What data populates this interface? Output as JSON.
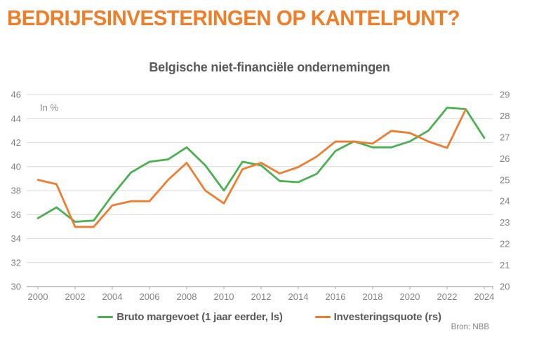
{
  "page": {
    "title": "BEDRIJFSINVESTERINGEN OP KANTELPUNT?",
    "source": "Bron: NBB"
  },
  "chart_data": {
    "type": "line",
    "title": "Belgische niet-financiële ondernemingen",
    "unit_note": "In %",
    "grid": true,
    "legend_position": "bottom",
    "x": [
      2000,
      2001,
      2002,
      2003,
      2004,
      2005,
      2006,
      2007,
      2008,
      2009,
      2010,
      2011,
      2012,
      2013,
      2014,
      2015,
      2016,
      2017,
      2018,
      2019,
      2020,
      2021,
      2022,
      2023,
      2024
    ],
    "x_tick_years": [
      2000,
      2002,
      2004,
      2006,
      2008,
      2010,
      2012,
      2014,
      2016,
      2018,
      2020,
      2022,
      2024
    ],
    "left_axis": {
      "side": "ls",
      "min": 30,
      "max": 46,
      "step": 2,
      "ticks": [
        30,
        32,
        34,
        36,
        38,
        40,
        42,
        44,
        46
      ]
    },
    "right_axis": {
      "side": "rs",
      "min": 20,
      "max": 29,
      "step": 1,
      "ticks": [
        20,
        21,
        22,
        23,
        24,
        25,
        26,
        27,
        28,
        29
      ]
    },
    "series": [
      {
        "name": "Bruto margevoet (1 jaar eerder, ls)",
        "axis": "left",
        "color": "#4BB052",
        "values": [
          35.7,
          36.6,
          35.4,
          35.5,
          37.6,
          39.5,
          40.4,
          40.6,
          41.6,
          40.1,
          38.0,
          40.4,
          40.1,
          38.8,
          38.7,
          39.4,
          41.3,
          42.1,
          41.6,
          41.6,
          42.1,
          43.0,
          44.9,
          44.8,
          42.4
        ]
      },
      {
        "name": "Investeringsquote (rs)",
        "axis": "right",
        "color": "#ED7D31",
        "values": [
          25.0,
          24.8,
          22.8,
          22.8,
          23.8,
          24.0,
          24.0,
          25.0,
          25.8,
          24.5,
          23.9,
          25.5,
          25.8,
          25.3,
          25.6,
          26.1,
          26.8,
          26.8,
          26.7,
          27.3,
          27.2,
          26.8,
          26.5,
          28.3,
          null
        ]
      }
    ],
    "colors": {
      "title_orange": "#F07D28",
      "subtitle_gray": "#595959",
      "axis_text": "#828282",
      "gridline": "#D9D9D9",
      "axis_line": "#A6A6A6"
    }
  }
}
